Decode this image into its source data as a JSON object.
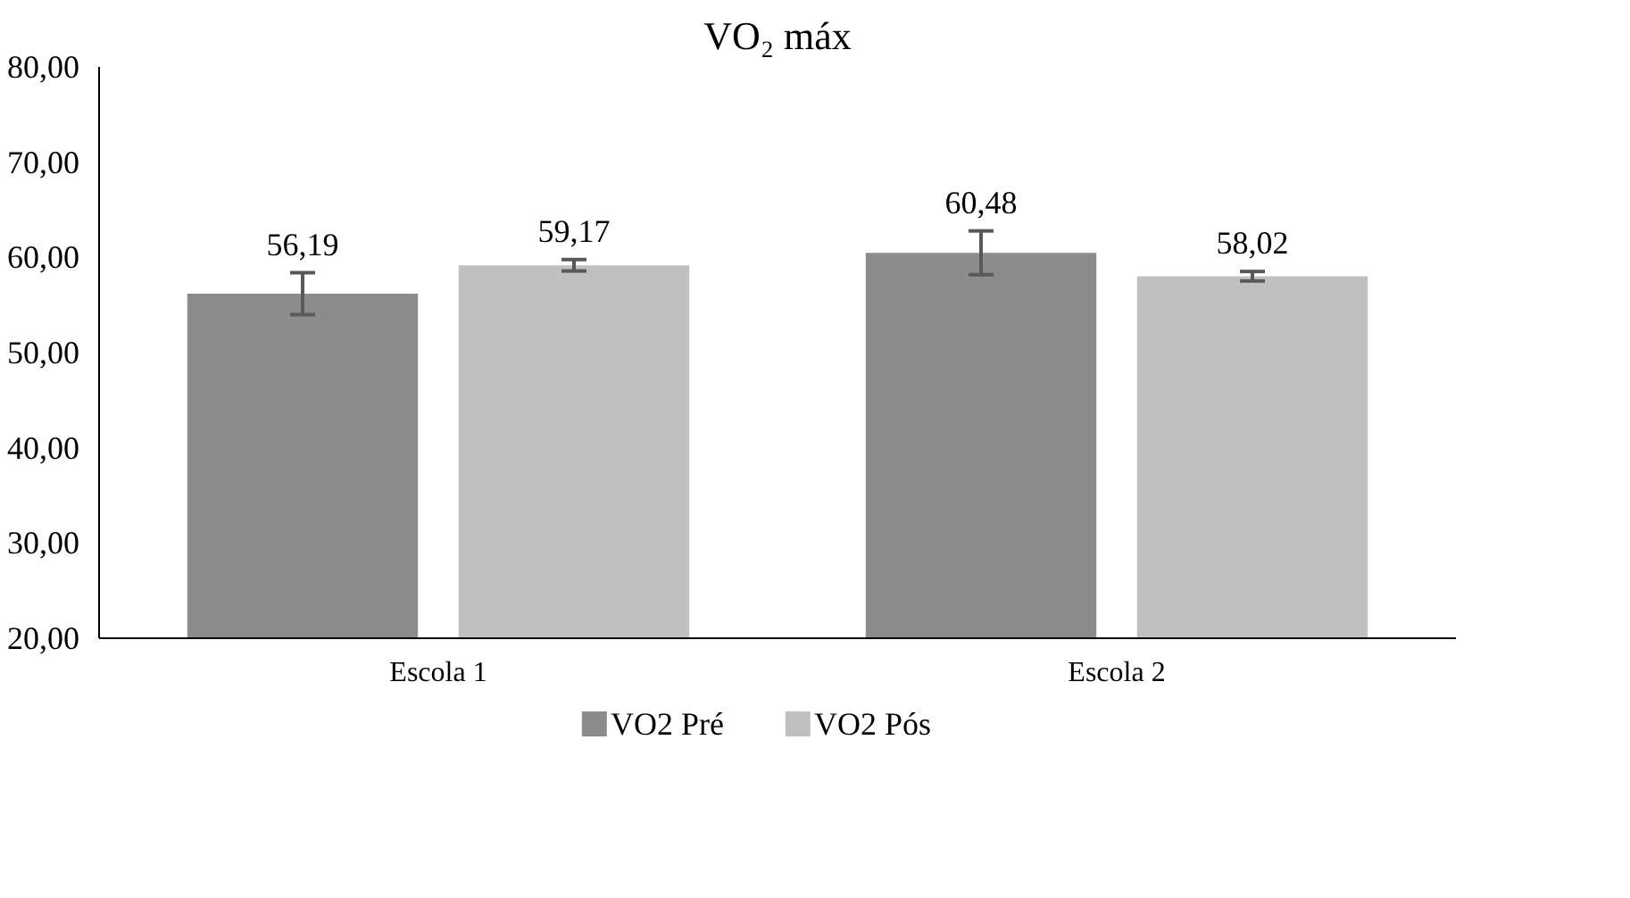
{
  "chart_data": {
    "type": "bar",
    "title": "VO₂ máx",
    "categories": [
      "Escola 1",
      "Escola 2"
    ],
    "series": [
      {
        "name": "VO2 Pré",
        "color": "#8c8c8c",
        "values": [
          56.19,
          60.48
        ],
        "errors": [
          2.2,
          2.3
        ],
        "value_labels": [
          "56,19",
          "60,48"
        ]
      },
      {
        "name": "VO2 Pós",
        "color": "#c0c0c0",
        "values": [
          59.17,
          58.02
        ],
        "errors": [
          0.6,
          0.5
        ],
        "value_labels": [
          "59,17",
          "58,02"
        ]
      }
    ],
    "ylim": [
      20,
      80
    ],
    "yticks": [
      {
        "value": 20,
        "label": "20,00"
      },
      {
        "value": 30,
        "label": "30,00"
      },
      {
        "value": 40,
        "label": "40,00"
      },
      {
        "value": 50,
        "label": "50,00"
      },
      {
        "value": 60,
        "label": "60,00"
      },
      {
        "value": 70,
        "label": "70,00"
      },
      {
        "value": 80,
        "label": "80,00"
      }
    ],
    "grid": false,
    "legend": "bottom"
  }
}
